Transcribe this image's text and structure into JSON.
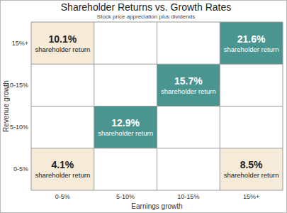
{
  "chart_data": {
    "type": "heatmap",
    "title": "Shareholder Returns vs. Growth Rates",
    "subtitle": "Stock price appreciation plus dividends",
    "x_label": "Earnings growth",
    "y_label": "Revenue growth",
    "x_categories": [
      "0-5%",
      "5-10%",
      "10-15%",
      "15%+"
    ],
    "y_categories": [
      "0-5%",
      "5-10%",
      "10-15%",
      "15%+"
    ],
    "cells": [
      [
        4.1,
        null,
        null,
        8.5
      ],
      [
        null,
        12.9,
        null,
        null
      ],
      [
        null,
        null,
        15.7,
        null
      ],
      [
        10.1,
        null,
        null,
        21.6
      ]
    ],
    "value_labels": [
      [
        "4.1%",
        null,
        null,
        "8.5%"
      ],
      [
        null,
        "12.9%",
        null,
        null
      ],
      [
        null,
        null,
        "15.7%",
        null
      ],
      [
        "10.1%",
        null,
        null,
        "21.6%"
      ]
    ],
    "colors": [
      [
        "#f6ead8",
        null,
        null,
        "#f6ead8"
      ],
      [
        null,
        "#4a958f",
        null,
        null
      ],
      [
        null,
        null,
        "#4a958f",
        null
      ],
      [
        "#f6ead8",
        null,
        null,
        "#4a958f"
      ]
    ],
    "annotation": "shareholder return",
    "data_labels": true,
    "grid": true
  }
}
